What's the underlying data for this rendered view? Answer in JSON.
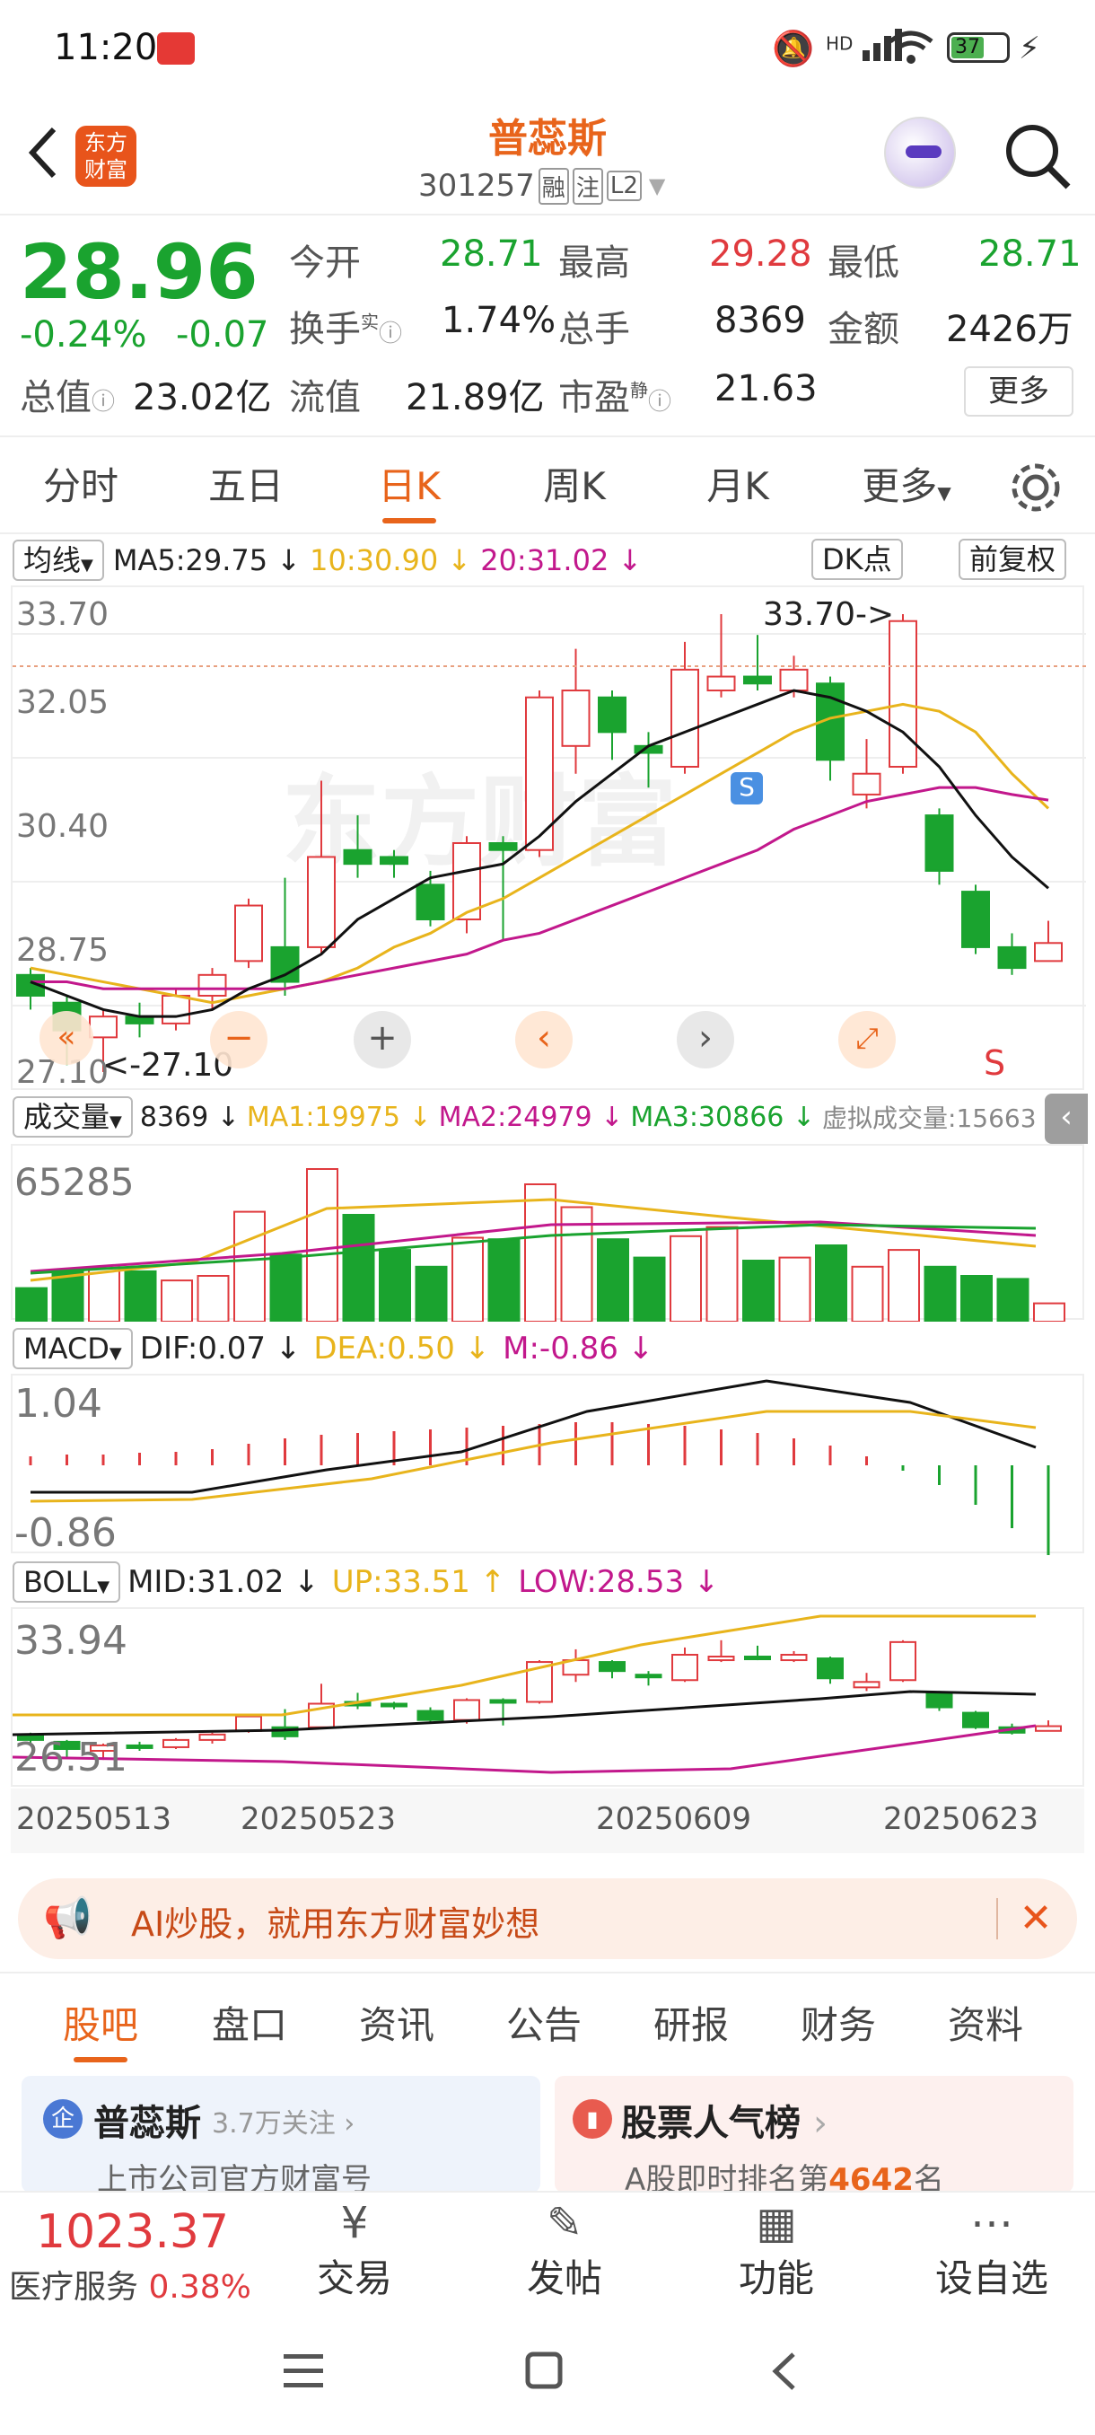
{
  "status": {
    "time": "11:20",
    "battery": "37",
    "net": "HD"
  },
  "header": {
    "name": "普蕊斯",
    "code": "301257",
    "badges": [
      "融",
      "注",
      "L2"
    ],
    "logo_text": "东方财富"
  },
  "quote": {
    "price": "28.96",
    "pct": "-0.24%",
    "chg": "-0.07",
    "open_label": "今开",
    "open": "28.71",
    "high_label": "最高",
    "high": "29.28",
    "low_label": "最低",
    "low": "28.71",
    "turnover_label": "换手",
    "turnover_sup": "实",
    "turnover": "1.74%",
    "vol_label": "总手",
    "vol": "8369",
    "amount_label": "金额",
    "amount": "2426万",
    "mktcap_label": "总值",
    "mktcap": "23.02亿",
    "float_label": "流值",
    "float": "21.89亿",
    "pe_label": "市盈",
    "pe_sup": "静",
    "pe": "21.63",
    "more": "更多"
  },
  "tabs": [
    "分时",
    "五日",
    "日K",
    "周K",
    "月K",
    "更多"
  ],
  "ma_bar": {
    "select": "均线",
    "ma5": "MA5:29.75 ↓",
    "ma10": "10:30.90 ↓",
    "ma20": "20:31.02 ↓",
    "dk": "DK点",
    "fq": "前复权"
  },
  "kchart": {
    "y_top": "33.70",
    "y2": "32.05",
    "y3": "30.40",
    "y4": "28.75",
    "y_bot": "27.10",
    "max_lbl": "33.70->",
    "min_lbl": "<-27.10",
    "s_mark": "S",
    "s_badge": "S"
  },
  "vol_bar": {
    "select": "成交量",
    "v": "8369 ↓",
    "ma1": "MA1:19975 ↓",
    "ma2": "MA2:24979 ↓",
    "ma3": "MA3:30866 ↓",
    "virt": "虚拟成交量:15663",
    "axis": "65285"
  },
  "macd_bar": {
    "select": "MACD",
    "dif": "DIF:0.07 ↓",
    "dea": "DEA:0.50 ↓",
    "m": "M:-0.86 ↓",
    "axis_top": "1.04",
    "axis_bot": "-0.86"
  },
  "boll_bar": {
    "select": "BOLL",
    "mid": "MID:31.02 ↓",
    "up": "UP:33.51 ↑",
    "low": "LOW:28.53 ↓",
    "axis_top": "33.94",
    "axis_bot": "26.51"
  },
  "dates": [
    "20250513",
    "20250523",
    "20250609",
    "20250623"
  ],
  "ad": {
    "text": "AI炒股，就用东方财富妙想"
  },
  "subtabs": [
    "股吧",
    "盘口",
    "资讯",
    "公告",
    "研报",
    "财务",
    "资料"
  ],
  "cards": [
    {
      "title": "普蕊斯",
      "meta": "3.7万关注",
      "desc": "上市公司官方财富号"
    },
    {
      "title": "股票人气榜",
      "desc_pre": "A股即时排名第",
      "rank": "4642",
      "desc_post": "名"
    }
  ],
  "bottomnav": {
    "index_value": "1023.37",
    "index_name": "医疗服务",
    "index_pct": "0.38%",
    "items": [
      "交易",
      "发帖",
      "功能",
      "设自选"
    ]
  },
  "colors": {
    "up": "#e03a3e",
    "down": "#1aa32f",
    "accent": "#e8641b",
    "ma10": "#e8b41c",
    "ma20": "#c2188c"
  },
  "chart_data": {
    "type": "candlestick",
    "x": [
      "20250513",
      "20250523",
      "20250609",
      "20250623"
    ],
    "ohlc_last": {
      "open": 28.71,
      "high": 29.28,
      "low": 28.71,
      "close": 28.96
    },
    "ylim": [
      27.1,
      33.7
    ],
    "ma": {
      "MA5": 29.75,
      "MA10": 30.9,
      "MA20": 31.02
    },
    "volume": {
      "MA1": 19975,
      "MA2": 24979,
      "MA3": 30866,
      "max": 65285
    },
    "macd": {
      "DIF": 0.07,
      "DEA": 0.5,
      "M": -0.86
    },
    "boll": {
      "MID": 31.02,
      "UP": 33.51,
      "LOW": 28.53
    }
  }
}
